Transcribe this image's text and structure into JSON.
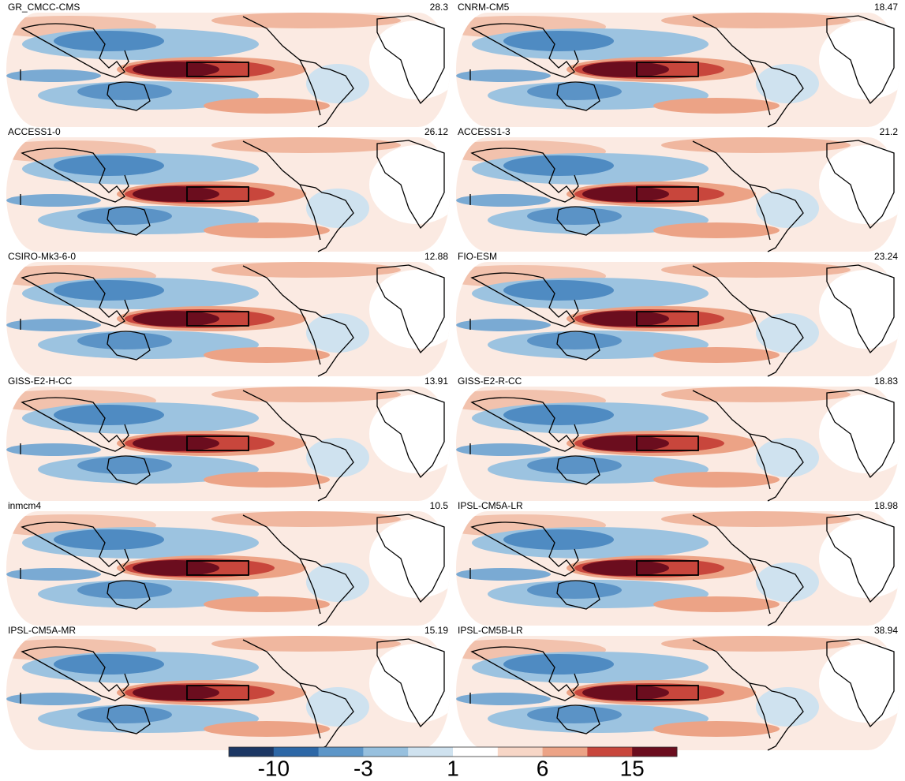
{
  "panels": [
    {
      "name": "GR_CMCC-CMS",
      "value": 28.3
    },
    {
      "name": "CNRM-CM5",
      "value": 18.47
    },
    {
      "name": "ACCESS1-0",
      "value": 26.12
    },
    {
      "name": "ACCESS1-3",
      "value": 21.2
    },
    {
      "name": "CSIRO-Mk3-6-0",
      "value": 12.88
    },
    {
      "name": "FIO-ESM",
      "value": 23.24
    },
    {
      "name": "GISS-E2-H-CC",
      "value": 13.91
    },
    {
      "name": "GISS-E2-R-CC",
      "value": 18.83
    },
    {
      "name": "inmcm4",
      "value": 10.5
    },
    {
      "name": "IPSL-CM5A-LR",
      "value": 18.98
    },
    {
      "name": "IPSL-CM5A-MR",
      "value": 15.19
    },
    {
      "name": "IPSL-CM5B-LR",
      "value": 38.94
    }
  ],
  "colorbar": {
    "colors": [
      "#1c3764",
      "#2d67a6",
      "#5d96c8",
      "#97c0de",
      "#cfe2ef",
      "#ffffff",
      "#f7d6c6",
      "#eca386",
      "#c8463c",
      "#6b0d1e"
    ],
    "labels": [
      -10,
      -3,
      1,
      6,
      15
    ]
  }
}
